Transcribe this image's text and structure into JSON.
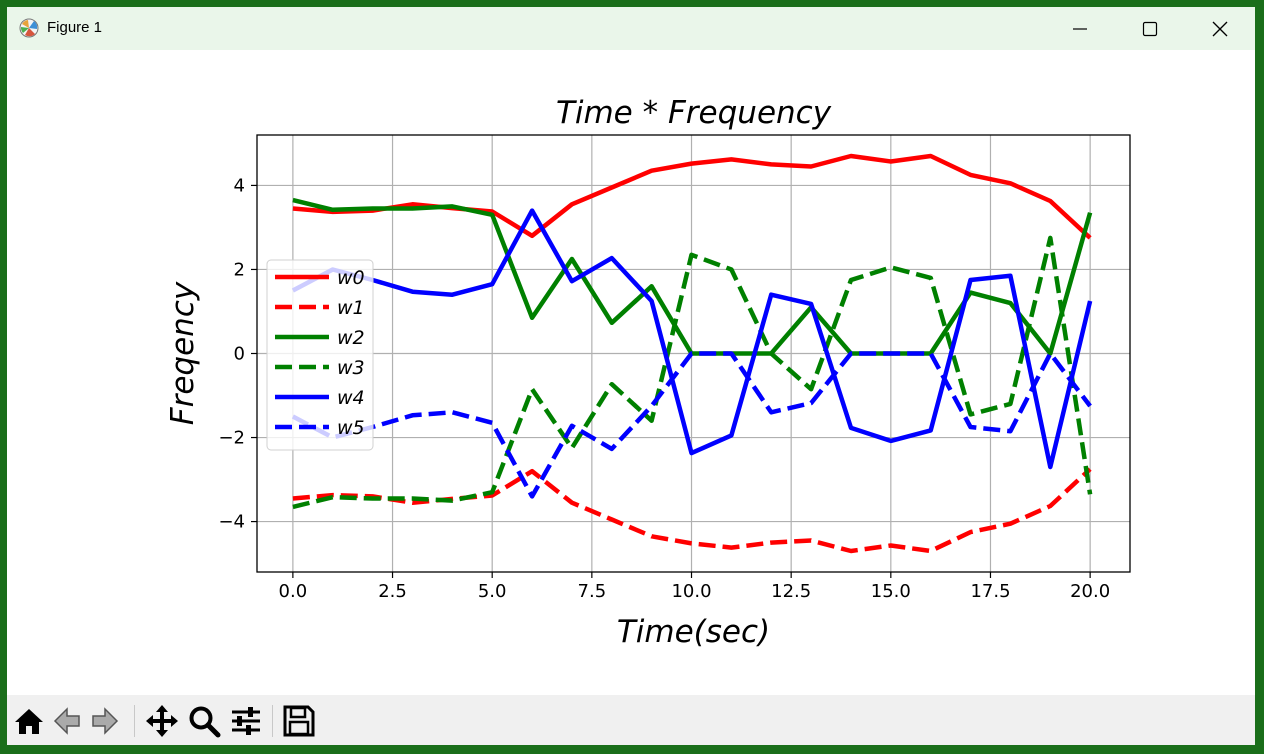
{
  "window": {
    "title": "Figure 1"
  },
  "toolbar": {
    "buttons": [
      "home-icon",
      "back-icon",
      "forward-icon",
      "pan-icon",
      "zoom-icon",
      "configure-icon",
      "save-icon"
    ]
  },
  "chart_data": {
    "type": "line",
    "title": "Time * Frequency",
    "xlabel": "Time(sec)",
    "ylabel": "Freqency",
    "xlim": [
      -0.9,
      21.0
    ],
    "ylim": [
      -5.2,
      5.2
    ],
    "xticks": [
      0.0,
      2.5,
      5.0,
      7.5,
      10.0,
      12.5,
      15.0,
      17.5,
      20.0
    ],
    "xtick_labels": [
      "0.0",
      "2.5",
      "5.0",
      "7.5",
      "10.0",
      "12.5",
      "15.0",
      "17.5",
      "20.0"
    ],
    "yticks": [
      -4,
      -2,
      0,
      2,
      4
    ],
    "ytick_labels": [
      "−4",
      "−2",
      "0",
      "2",
      "4"
    ],
    "grid": true,
    "legend_position": "center-left",
    "x": [
      0,
      1,
      2,
      3,
      4,
      5,
      6,
      7,
      8,
      9,
      10,
      11,
      12,
      13,
      14,
      15,
      16,
      17,
      18,
      19,
      20
    ],
    "series": [
      {
        "name": "w0",
        "color": "#ff0000",
        "dash": "solid",
        "values": [
          3.45,
          3.37,
          3.4,
          3.55,
          3.46,
          3.38,
          2.8,
          3.55,
          3.95,
          4.35,
          4.52,
          4.62,
          4.5,
          4.45,
          4.7,
          4.57,
          4.7,
          4.25,
          4.05,
          3.63,
          2.75
        ]
      },
      {
        "name": "w1",
        "color": "#ff0000",
        "dash": "dashed",
        "values": [
          -3.45,
          -3.37,
          -3.4,
          -3.55,
          -3.46,
          -3.38,
          -2.8,
          -3.55,
          -3.95,
          -4.35,
          -4.52,
          -4.62,
          -4.5,
          -4.45,
          -4.7,
          -4.57,
          -4.7,
          -4.25,
          -4.05,
          -3.63,
          -2.75
        ]
      },
      {
        "name": "w2",
        "color": "#008000",
        "dash": "solid",
        "values": [
          3.65,
          3.42,
          3.45,
          3.45,
          3.5,
          3.3,
          0.85,
          2.25,
          0.73,
          1.6,
          0.0,
          0.0,
          0.0,
          1.1,
          0.0,
          0.0,
          0.0,
          1.45,
          1.2,
          0.0,
          3.35
        ]
      },
      {
        "name": "w3",
        "color": "#008000",
        "dash": "dashed",
        "values": [
          -3.65,
          -3.42,
          -3.45,
          -3.45,
          -3.5,
          -3.3,
          -0.85,
          -2.25,
          -0.73,
          -1.6,
          2.35,
          2.0,
          0.0,
          -0.85,
          1.75,
          2.05,
          1.8,
          -1.45,
          -1.2,
          2.75,
          -3.35
        ]
      },
      {
        "name": "w4",
        "color": "#0000ff",
        "dash": "solid",
        "values": [
          1.5,
          2.0,
          1.75,
          1.47,
          1.4,
          1.65,
          3.4,
          1.72,
          2.27,
          1.25,
          -2.37,
          -1.95,
          1.4,
          1.18,
          -1.77,
          -2.08,
          -1.83,
          1.75,
          1.85,
          -2.7,
          1.25
        ]
      },
      {
        "name": "w5",
        "color": "#0000ff",
        "dash": "dashed",
        "values": [
          -1.5,
          -2.0,
          -1.75,
          -1.47,
          -1.4,
          -1.65,
          -3.4,
          -1.72,
          -2.27,
          -1.25,
          0.0,
          0.0,
          -1.4,
          -1.18,
          0.0,
          0.0,
          0.0,
          -1.75,
          -1.85,
          0.0,
          -1.25
        ]
      }
    ]
  }
}
